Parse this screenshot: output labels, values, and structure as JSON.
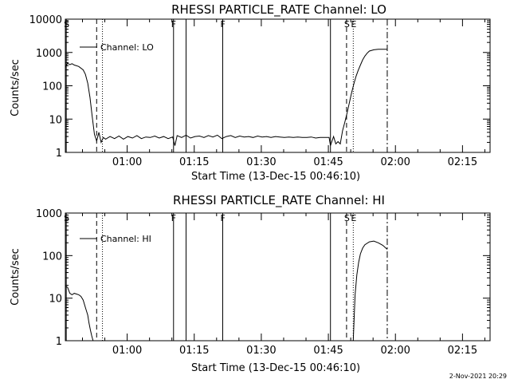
{
  "footer": {
    "date_stamp": "2-Nov-2021 20:29"
  },
  "chart_data": [
    {
      "type": "line",
      "title": "RHESSI PARTICLE_RATE Channel: LO",
      "xlabel": "Start Time (13-Dec-15 00:46:10)",
      "ylabel": "Counts/sec",
      "y_scale": "log",
      "xlim_minutes": [
        0,
        95
      ],
      "ylim": [
        1,
        10000
      ],
      "x_tick_labels": [
        "01:00",
        "01:15",
        "01:30",
        "01:45",
        "02:00",
        "02:15"
      ],
      "x_tick_minutes": [
        13.83,
        28.83,
        43.83,
        58.83,
        73.83,
        88.83
      ],
      "y_tick_labels": [
        "1",
        "10",
        "100",
        "1000",
        "10000"
      ],
      "y_tick_values": [
        1,
        10,
        100,
        1000,
        10000
      ],
      "legend": {
        "label": "Channel: LO",
        "position": "top-left"
      },
      "markers": [
        {
          "label": "S",
          "style": "solid",
          "minute": 0.2
        },
        {
          "label": "",
          "style": "dashed",
          "minute": 7.0
        },
        {
          "label": "",
          "style": "dotted",
          "minute": 8.3
        },
        {
          "label": "F",
          "style": "solid",
          "minute": 24.2
        },
        {
          "label": "",
          "style": "solid",
          "minute": 27.0
        },
        {
          "label": "F",
          "style": "solid",
          "minute": 35.2
        },
        {
          "label": "",
          "style": "solid",
          "minute": 59.3
        },
        {
          "label": "S",
          "style": "dashed",
          "minute": 62.9
        },
        {
          "label": "E",
          "style": "dotted",
          "minute": 64.4
        },
        {
          "label": "",
          "style": "dashdot",
          "minute": 72.0
        }
      ],
      "series": [
        {
          "x": [
            0,
            0.5,
            1,
            1.5,
            2,
            3,
            4,
            4.5,
            5,
            5.5,
            6,
            6.5,
            7,
            7.5,
            8,
            8.5,
            9,
            10,
            11,
            12,
            13,
            14,
            15,
            16,
            17,
            18,
            19,
            20,
            21,
            22,
            23,
            24,
            24.5,
            25,
            26,
            27,
            28,
            29,
            30,
            31,
            32,
            33,
            34,
            35,
            36,
            37,
            38,
            39,
            40,
            41,
            42,
            43,
            44,
            45,
            46,
            47,
            48,
            49,
            50,
            51,
            52,
            53,
            54,
            55,
            56,
            57,
            58,
            59,
            59.3,
            60,
            60.5,
            61,
            61.5,
            62,
            62.5,
            63,
            63.5,
            64,
            64.5,
            65,
            65.5,
            66,
            66.5,
            67,
            67.5,
            68,
            69,
            70,
            71,
            72
          ],
          "y": [
            350,
            480,
            430,
            460,
            420,
            380,
            300,
            220,
            120,
            45,
            12,
            3.5,
            2.2,
            4.0,
            2.0,
            2.8,
            2.5,
            3.0,
            2.6,
            3.1,
            2.5,
            3.0,
            2.7,
            3.2,
            2.6,
            2.9,
            2.8,
            3.1,
            2.7,
            3.0,
            2.6,
            2.9,
            1.6,
            3.2,
            2.8,
            3.3,
            2.7,
            3.0,
            3.1,
            2.8,
            3.2,
            2.9,
            3.3,
            2.6,
            3.0,
            3.2,
            2.8,
            3.1,
            2.9,
            3.0,
            2.8,
            3.1,
            2.9,
            3.0,
            2.8,
            3.0,
            2.9,
            2.8,
            2.9,
            2.8,
            2.9,
            2.8,
            2.8,
            2.9,
            2.7,
            2.8,
            2.8,
            2.8,
            1.6,
            3.0,
            1.8,
            2.1,
            1.8,
            4.5,
            8.0,
            15,
            30,
            60,
            110,
            190,
            290,
            420,
            600,
            780,
            950,
            1100,
            1200,
            1250,
            1250,
            1250
          ]
        }
      ]
    },
    {
      "type": "line",
      "title": "RHESSI PARTICLE_RATE Channel: HI",
      "xlabel": "Start Time (13-Dec-15 00:46:10)",
      "ylabel": "Counts/sec",
      "y_scale": "log",
      "xlim_minutes": [
        0,
        95
      ],
      "ylim": [
        1,
        1000
      ],
      "x_tick_labels": [
        "01:00",
        "01:15",
        "01:30",
        "01:45",
        "02:00",
        "02:15"
      ],
      "x_tick_minutes": [
        13.83,
        28.83,
        43.83,
        58.83,
        73.83,
        88.83
      ],
      "y_tick_labels": [
        "1",
        "10",
        "100",
        "1000"
      ],
      "y_tick_values": [
        1,
        10,
        100,
        1000
      ],
      "legend": {
        "label": "Channel: HI",
        "position": "top-left"
      },
      "markers": [
        {
          "label": "S",
          "style": "solid",
          "minute": 0.2
        },
        {
          "label": "",
          "style": "dashed",
          "minute": 7.0
        },
        {
          "label": "",
          "style": "dotted",
          "minute": 8.3
        },
        {
          "label": "F",
          "style": "solid",
          "minute": 24.2
        },
        {
          "label": "",
          "style": "solid",
          "minute": 27.0
        },
        {
          "label": "F",
          "style": "solid",
          "minute": 35.2
        },
        {
          "label": "",
          "style": "solid",
          "minute": 59.3
        },
        {
          "label": "S",
          "style": "dashed",
          "minute": 62.9
        },
        {
          "label": "E",
          "style": "dotted",
          "minute": 64.4
        },
        {
          "label": "",
          "style": "dashdot",
          "minute": 72.0
        }
      ],
      "series": [
        {
          "x": [
            0,
            0.5,
            1,
            1.5,
            2,
            3,
            3.5,
            4,
            4.5,
            5,
            5.3,
            5.6,
            5.9,
            6.2
          ],
          "y": [
            19,
            18,
            13,
            12,
            13,
            12,
            11,
            9,
            6,
            4,
            2.6,
            1.8,
            1.3,
            1.0
          ]
        },
        {
          "x": [
            64.4,
            64.8,
            65.2,
            65.6,
            66,
            66.5,
            67,
            68,
            69,
            70,
            71,
            72
          ],
          "y": [
            1.0,
            12,
            35,
            70,
            110,
            150,
            180,
            210,
            220,
            200,
            175,
            140
          ]
        }
      ]
    }
  ]
}
